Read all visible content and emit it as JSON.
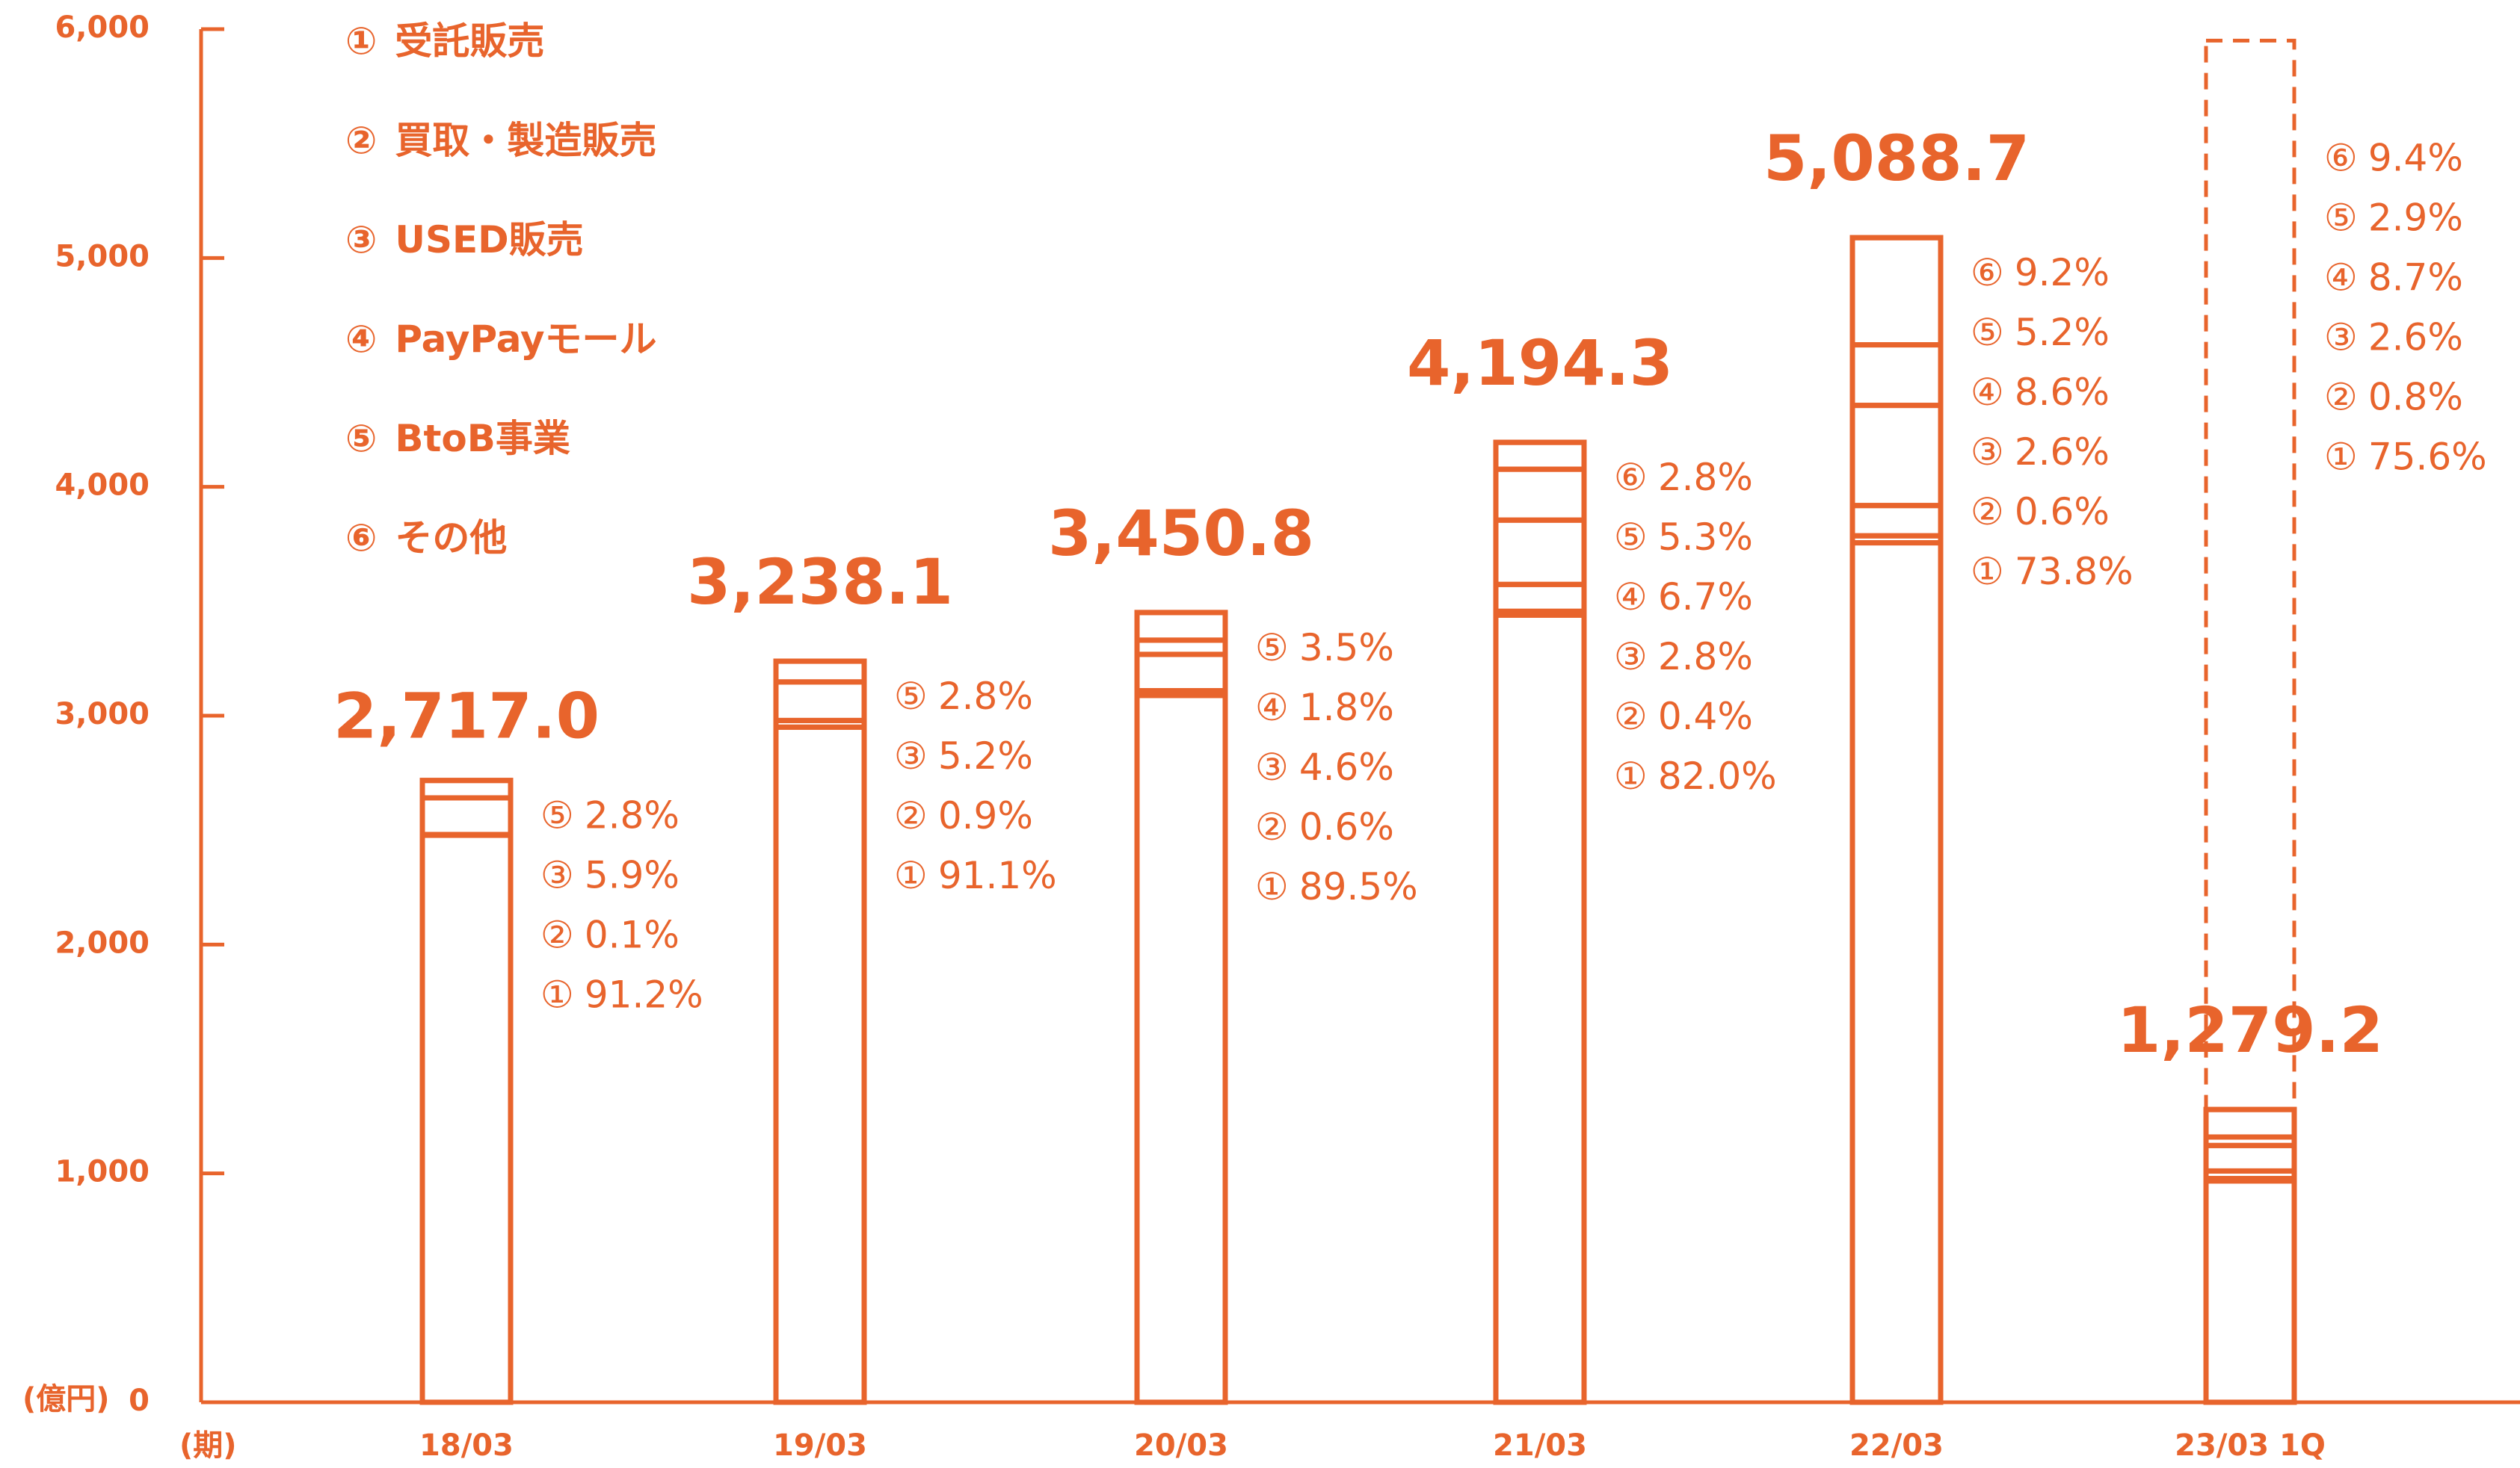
{
  "chart_data": {
    "type": "bar",
    "stacked": true,
    "color": "#e8642c",
    "categories": [
      "18/03",
      "19/03",
      "20/03",
      "21/03",
      "22/03",
      "23/03 1Q"
    ],
    "totals": {
      "values": [
        2717.0,
        3238.1,
        3450.8,
        4194.3,
        5088.7,
        1279.2
      ],
      "value_labels": [
        "2,717.0",
        "3,238.1",
        "3,450.8",
        "4,194.3",
        "5,088.7",
        "1,279.2"
      ]
    },
    "outline": [
      null,
      null,
      null,
      null,
      null,
      5950
    ],
    "series": [
      {
        "marker": "①",
        "name": "受託販売",
        "values": [
          91.2,
          91.1,
          89.5,
          82.0,
          73.8,
          75.6
        ],
        "value_labels": [
          "91.2%",
          "91.1%",
          "89.5%",
          "82.0%",
          "73.8%",
          "75.6%"
        ]
      },
      {
        "marker": "②",
        "name": "買取・製造販売",
        "values": [
          0.1,
          0.9,
          0.6,
          0.4,
          0.6,
          0.8
        ],
        "value_labels": [
          "0.1%",
          "0.9%",
          "0.6%",
          "0.4%",
          "0.6%",
          "0.8%"
        ]
      },
      {
        "marker": "③",
        "name": "USED販売",
        "values": [
          5.9,
          5.2,
          4.6,
          2.8,
          2.6,
          2.6
        ],
        "value_labels": [
          "5.9%",
          "5.2%",
          "4.6%",
          "2.8%",
          "2.6%",
          "2.6%"
        ]
      },
      {
        "marker": "④",
        "name": "PayPayモール",
        "values": [
          null,
          null,
          1.8,
          6.7,
          8.6,
          8.7
        ],
        "value_labels": [
          null,
          null,
          "1.8%",
          "6.7%",
          "8.6%",
          "8.7%"
        ]
      },
      {
        "marker": "⑤",
        "name": "BtoB事業",
        "values": [
          2.8,
          2.8,
          3.5,
          5.3,
          5.2,
          2.9
        ],
        "value_labels": [
          "2.8%",
          "2.8%",
          "3.5%",
          "5.3%",
          "5.2%",
          "2.9%"
        ]
      },
      {
        "marker": "⑥",
        "name": "その他",
        "values": [
          null,
          null,
          null,
          2.8,
          9.2,
          9.4
        ],
        "value_labels": [
          null,
          null,
          null,
          "2.8%",
          "9.2%",
          "9.4%"
        ]
      }
    ],
    "ylim": [
      0,
      6000
    ],
    "yticks": [
      0,
      {
        "value": 1000,
        "label": "1,000"
      },
      {
        "value": 2000,
        "label": "2,000"
      },
      {
        "value": 3000,
        "label": "3,000"
      },
      {
        "value": 4000,
        "label": "4,000"
      },
      {
        "value": 5000,
        "label": "5,000"
      },
      {
        "value": 6000,
        "label": "6,000"
      }
    ],
    "y_unit": "(億円)",
    "x_unit": "(期)"
  }
}
